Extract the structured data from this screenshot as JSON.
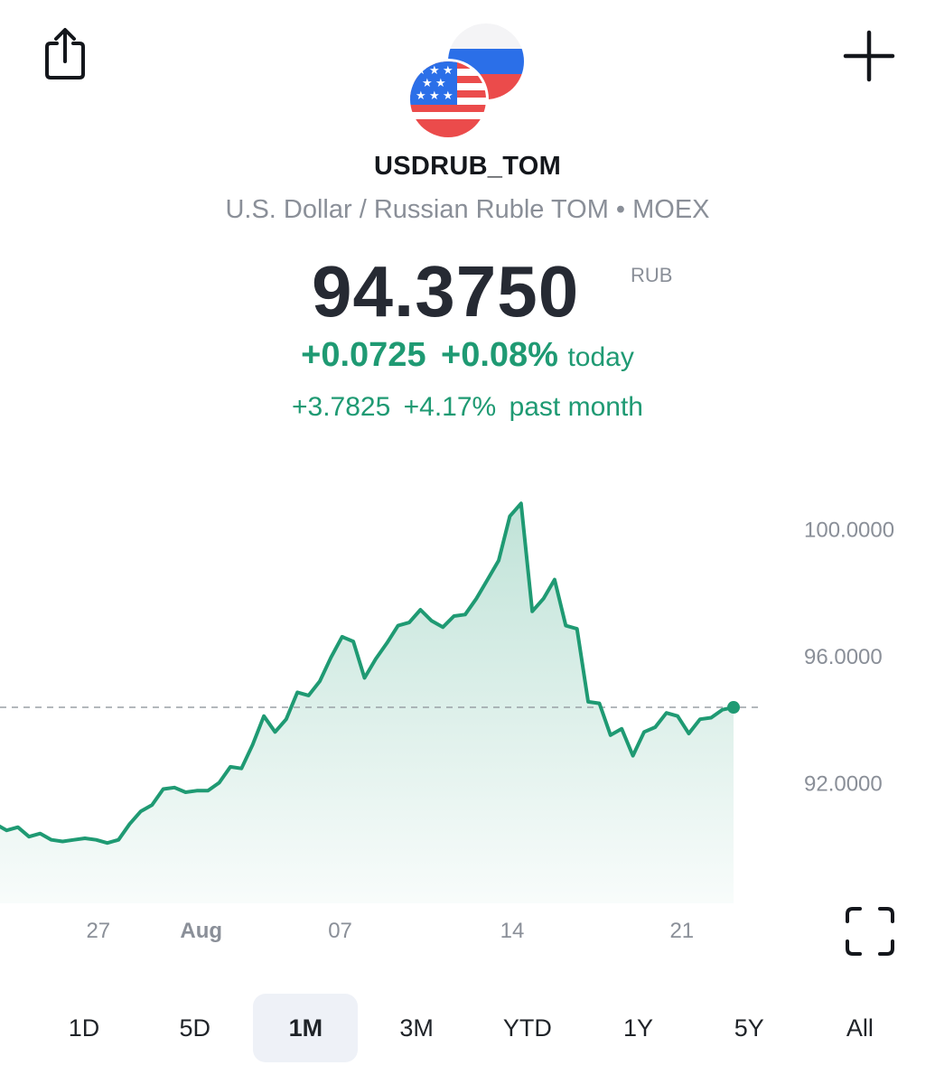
{
  "header": {
    "share_icon": "share-icon",
    "add_icon": "plus-icon",
    "flags_icon": "usd-rub-flags-icon",
    "symbol": "USDRUB_TOM",
    "subtitle": "U.S. Dollar / Russian Ruble TOM • MOEX"
  },
  "quote": {
    "price": "94.3750",
    "currency": "RUB",
    "change_today": "+0.0725",
    "change_today_pct": "+0.08%",
    "today_label": "today",
    "change_month": "+3.7825",
    "change_month_pct": "+4.17%",
    "month_label": "past month"
  },
  "colors": {
    "accent_green": "#1f9a73",
    "price_text": "#262a33",
    "muted_text": "#8a8f98",
    "active_range_bg": "#eef1f7"
  },
  "chart_data": {
    "type": "area",
    "series": [
      {
        "values": [
          90.7,
          90.5,
          90.6,
          90.3,
          90.4,
          90.2,
          90.15,
          90.2,
          90.25,
          90.2,
          90.1,
          90.2,
          90.7,
          91.1,
          91.3,
          91.8,
          91.85,
          91.7,
          91.75,
          91.75,
          92.0,
          92.5,
          92.45,
          93.2,
          94.1,
          93.6,
          94.0,
          94.85,
          94.75,
          95.2,
          95.95,
          96.6,
          96.45,
          95.3,
          95.9,
          96.4,
          96.95,
          97.05,
          97.45,
          97.1,
          96.9,
          97.25,
          97.3,
          97.8,
          98.4,
          99.0,
          100.4,
          100.8,
          97.4,
          97.8,
          98.4,
          96.95,
          96.85,
          94.55,
          94.5,
          93.5,
          93.7,
          92.85,
          93.6,
          93.75,
          94.2,
          94.1,
          93.55,
          94.0,
          94.05,
          94.3,
          94.375
        ]
      }
    ],
    "x_ticks": [
      {
        "label": "27",
        "pos": 0.128,
        "bold": false
      },
      {
        "label": "Aug",
        "pos": 0.262,
        "bold": true
      },
      {
        "label": "07",
        "pos": 0.443,
        "bold": false
      },
      {
        "label": "14",
        "pos": 0.667,
        "bold": false
      },
      {
        "label": "21",
        "pos": 0.888,
        "bold": false
      }
    ],
    "y_ticks": [
      "100.0000",
      "96.0000",
      "92.0000"
    ],
    "y_tick_values": [
      100,
      96,
      92
    ],
    "ylim": [
      88.2,
      103.0
    ],
    "reference_line": 94.375,
    "grid": false,
    "last_point_marker": true,
    "fullscreen_icon": "fullscreen-icon"
  },
  "ranges": {
    "items": [
      {
        "label": "1D",
        "active": false
      },
      {
        "label": "5D",
        "active": false
      },
      {
        "label": "1M",
        "active": true
      },
      {
        "label": "3M",
        "active": false
      },
      {
        "label": "YTD",
        "active": false
      },
      {
        "label": "1Y",
        "active": false
      },
      {
        "label": "5Y",
        "active": false
      },
      {
        "label": "All",
        "active": false
      }
    ]
  }
}
